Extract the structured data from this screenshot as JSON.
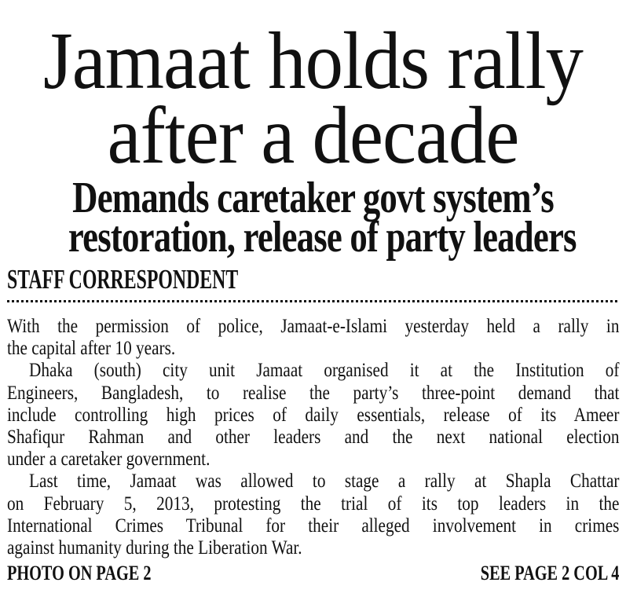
{
  "colors": {
    "paper": "#ffffff",
    "ink": "#111111"
  },
  "article": {
    "headline_lines": [
      "Jamaat holds rally",
      "after a decade"
    ],
    "subheadline_lines": [
      "Demands caretaker govt system’s",
      "restoration, release of party leaders"
    ],
    "byline": "STAFF CORRESPONDENT",
    "paragraphs": [
      [
        "With the permission of police, Jamaat-e-Islami yesterday held a rally in",
        "the capital after 10 years."
      ],
      [
        "Dhaka (south) city unit Jamaat organised it at the Institution of",
        "Engineers, Bangladesh, to realise the party’s three-point demand that",
        "include controlling high prices of daily essentials, release of its Ameer",
        "Shafiqur Rahman and other leaders and the next national election",
        "under a caretaker government."
      ],
      [
        "Last time, Jamaat was allowed to stage a rally at Shapla Chattar",
        "on February 5, 2013, protesting the trial of its top leaders in the",
        "International Crimes Tribunal for their alleged involvement in crimes",
        "against humanity during the Liberation War."
      ]
    ],
    "footer": {
      "photo_ref": "PHOTO ON PAGE 2",
      "see_page_ref": "SEE PAGE 2 COL 4"
    }
  }
}
